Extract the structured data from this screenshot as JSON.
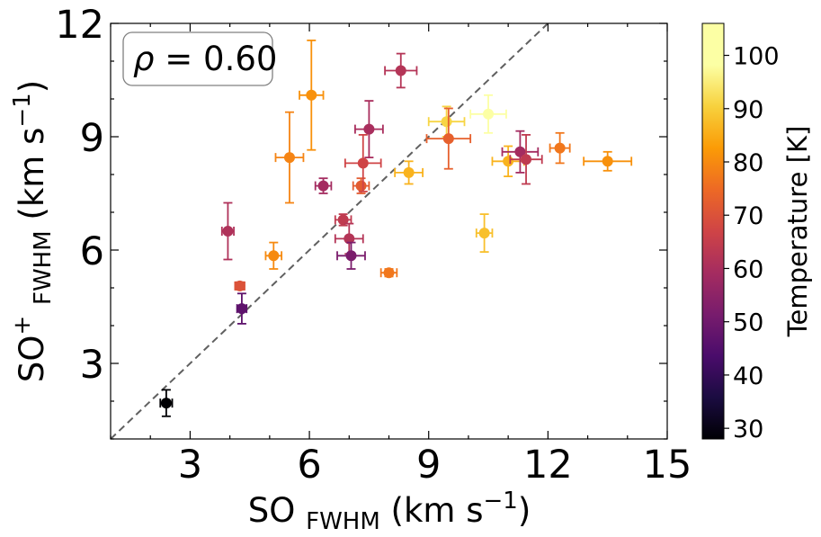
{
  "chart_data": {
    "type": "scatter",
    "title": "",
    "xlabel": {
      "main": "SO",
      "sub": "FWHM",
      "unit_pre": "(km s",
      "unit_sup": "−1",
      "unit_post": ")"
    },
    "ylabel": {
      "main": "SO",
      "sup": "+",
      "sub": "FWHM",
      "unit_pre": "(km s",
      "unit_sup": "−1",
      "unit_post": ")"
    },
    "xlim": [
      1.0,
      15.0
    ],
    "ylim": [
      1.0,
      12.0
    ],
    "xticks": [
      3,
      6,
      9,
      12,
      15
    ],
    "yticks": [
      3,
      6,
      9,
      12
    ],
    "xtick_labels": [
      "3",
      "6",
      "9",
      "12",
      "15"
    ],
    "ytick_labels": [
      "3",
      "6",
      "9",
      "12"
    ],
    "annotation": {
      "symbol": "ρ",
      "eq": " = ",
      "value": "0.60"
    },
    "reference_line": {
      "style": "dashed",
      "slope": 1,
      "intercept": 0,
      "color": "#606060"
    },
    "colorbar": {
      "label": "Temperature [K]",
      "range": [
        28,
        106
      ],
      "ticks": [
        30,
        40,
        50,
        60,
        70,
        80,
        90,
        100
      ],
      "tick_labels": [
        "30",
        "40",
        "50",
        "60",
        "70",
        "80",
        "90",
        "100"
      ],
      "colormap": "inferno"
    },
    "points": [
      {
        "x": 2.4,
        "y": 1.95,
        "xerr": 0.15,
        "yerr": 0.35,
        "t": 28
      },
      {
        "x": 3.95,
        "y": 6.5,
        "xerr": 0.15,
        "yerr": 0.75,
        "t": 61
      },
      {
        "x": 4.25,
        "y": 5.05,
        "xerr": 0.12,
        "yerr": 0.1,
        "t": 70
      },
      {
        "x": 4.3,
        "y": 4.45,
        "xerr": 0.12,
        "yerr": 0.4,
        "t": 47
      },
      {
        "x": 5.1,
        "y": 5.85,
        "xerr": 0.2,
        "yerr": 0.35,
        "t": 80
      },
      {
        "x": 5.5,
        "y": 8.45,
        "xerr": 0.35,
        "yerr": 1.2,
        "t": 79
      },
      {
        "x": 6.05,
        "y": 10.1,
        "xerr": 0.3,
        "yerr": 1.45,
        "t": 81
      },
      {
        "x": 6.35,
        "y": 7.7,
        "xerr": 0.2,
        "yerr": 0.2,
        "t": 59
      },
      {
        "x": 6.85,
        "y": 6.8,
        "xerr": 0.2,
        "yerr": 0.15,
        "t": 64
      },
      {
        "x": 7.0,
        "y": 6.3,
        "xerr": 0.35,
        "yerr": 0.4,
        "t": 62
      },
      {
        "x": 7.05,
        "y": 5.85,
        "xerr": 0.35,
        "yerr": 0.35,
        "t": 52
      },
      {
        "x": 7.3,
        "y": 7.7,
        "xerr": 0.2,
        "yerr": 0.2,
        "t": 72
      },
      {
        "x": 7.35,
        "y": 8.3,
        "xerr": 0.45,
        "yerr": 0.75,
        "t": 67
      },
      {
        "x": 7.5,
        "y": 9.2,
        "xerr": 0.35,
        "yerr": 0.75,
        "t": 60
      },
      {
        "x": 8.0,
        "y": 5.4,
        "xerr": 0.2,
        "yerr": 0.1,
        "t": 77
      },
      {
        "x": 8.3,
        "y": 10.75,
        "xerr": 0.4,
        "yerr": 0.45,
        "t": 62
      },
      {
        "x": 8.5,
        "y": 8.05,
        "xerr": 0.35,
        "yerr": 0.3,
        "t": 86
      },
      {
        "x": 9.45,
        "y": 9.4,
        "xerr": 0.45,
        "yerr": 0.4,
        "t": 91
      },
      {
        "x": 9.5,
        "y": 8.95,
        "xerr": 0.55,
        "yerr": 0.8,
        "t": 73
      },
      {
        "x": 10.4,
        "y": 6.45,
        "xerr": 0.2,
        "yerr": 0.5,
        "t": 88
      },
      {
        "x": 10.5,
        "y": 9.6,
        "xerr": 0.45,
        "yerr": 0.5,
        "t": 106
      },
      {
        "x": 11.0,
        "y": 8.35,
        "xerr": 0.4,
        "yerr": 0.4,
        "t": 86
      },
      {
        "x": 11.3,
        "y": 8.6,
        "xerr": 0.45,
        "yerr": 0.55,
        "t": 59
      },
      {
        "x": 11.45,
        "y": 8.4,
        "xerr": 0.4,
        "yerr": 0.65,
        "t": 64
      },
      {
        "x": 12.3,
        "y": 8.7,
        "xerr": 0.25,
        "yerr": 0.4,
        "t": 77
      },
      {
        "x": 13.5,
        "y": 8.35,
        "xerr": 0.6,
        "yerr": 0.25,
        "t": 81
      }
    ]
  }
}
